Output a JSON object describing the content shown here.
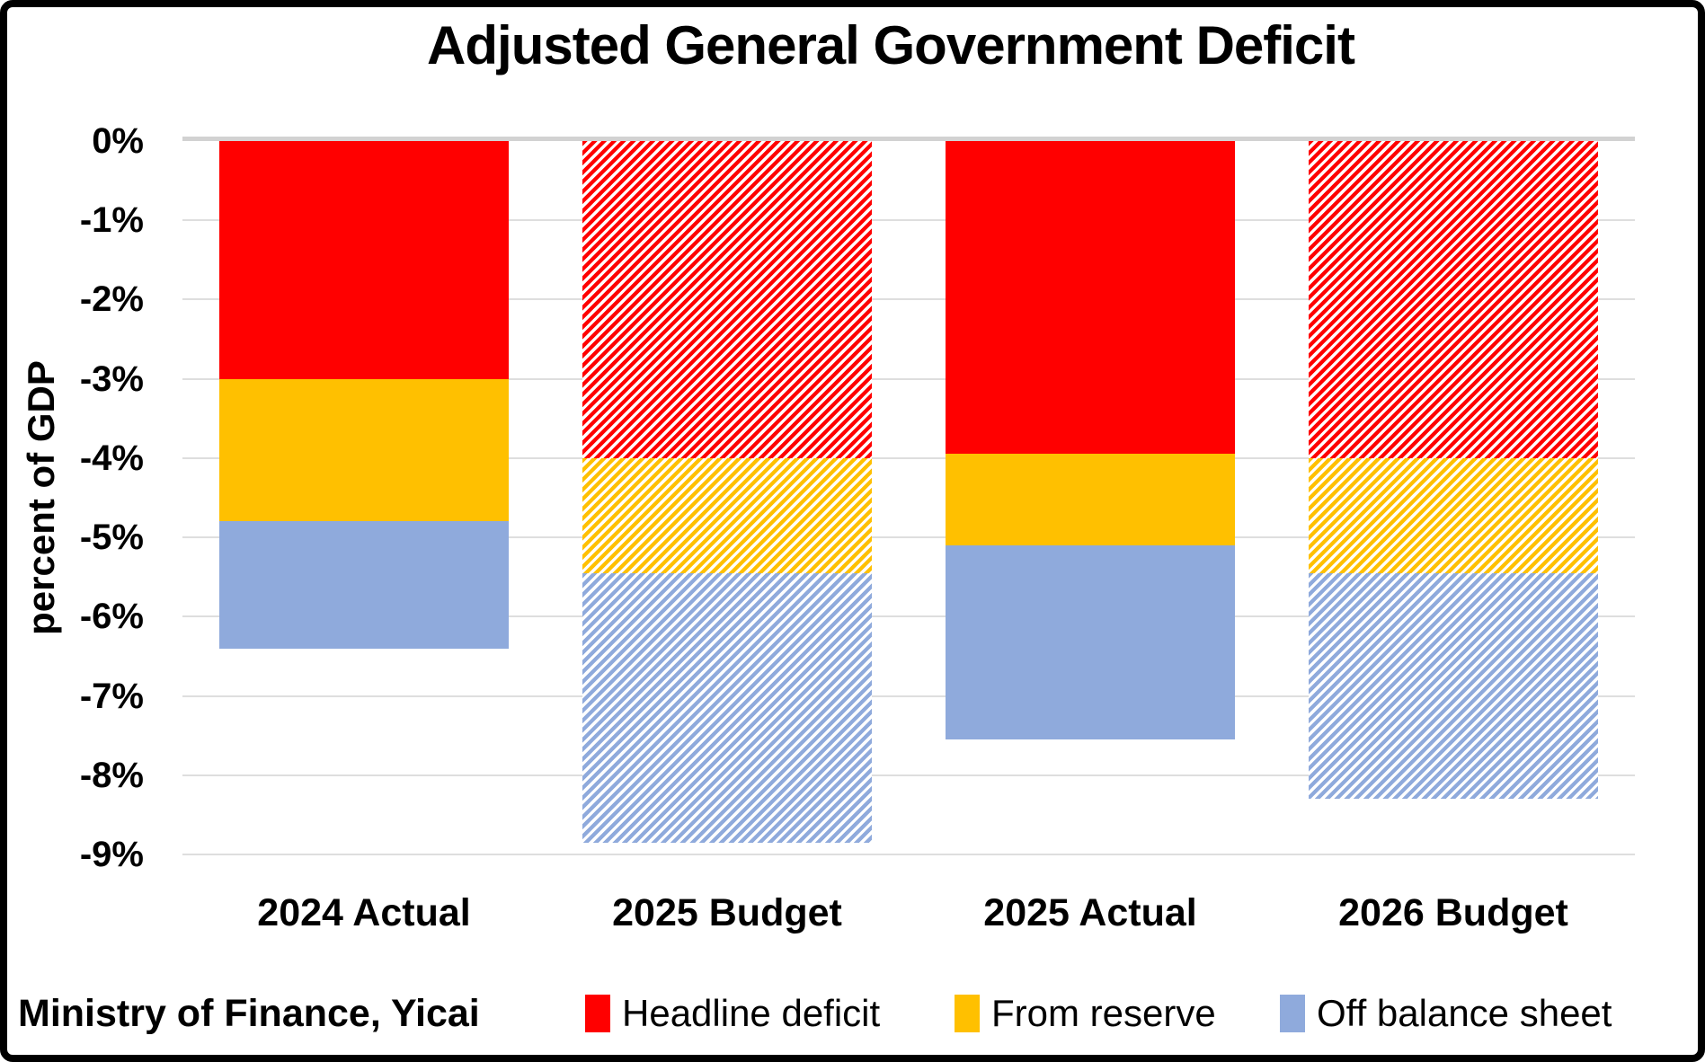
{
  "chart": {
    "title": "Adjusted General Government Deficit",
    "source": "Ministry of Finance, Yicai"
  },
  "y_axis": {
    "title": "percent of GDP",
    "tick_labels": [
      "0%",
      "-1%",
      "-2%",
      "-3%",
      "-4%",
      "-5%",
      "-6%",
      "-7%",
      "-8%",
      "-9%"
    ]
  },
  "chart_data": {
    "type": "bar",
    "stacked": true,
    "direction": "negative-down",
    "title": "Adjusted General Government Deficit",
    "ylabel": "percent of GDP",
    "ylim": [
      -9,
      0
    ],
    "grid": true,
    "legend_position": "bottom",
    "categories": [
      "2024 Actual",
      "2025 Budget",
      "2025 Actual",
      "2026 Budget"
    ],
    "bar_styles": [
      "solid",
      "hatched",
      "solid",
      "hatched"
    ],
    "series": [
      {
        "name": "Headline deficit",
        "color": "#FF0000",
        "values": [
          -3.0,
          -4.0,
          -3.95,
          -4.0
        ]
      },
      {
        "name": "From reserve",
        "color": "#FFC000",
        "values": [
          -1.8,
          -1.45,
          -1.15,
          -1.45
        ]
      },
      {
        "name": "Off balance sheet",
        "color": "#8FAADC",
        "values": [
          -1.6,
          -3.4,
          -2.45,
          -2.85
        ]
      }
    ],
    "stack_totals": [
      -6.4,
      -8.85,
      -7.55,
      -8.3
    ]
  },
  "legend": {
    "items": [
      {
        "label": "Headline deficit",
        "color": "#FF0000"
      },
      {
        "label": "From reserve",
        "color": "#FFC000"
      },
      {
        "label": "Off balance sheet",
        "color": "#8FAADC"
      }
    ]
  },
  "style": {
    "background": "#FFFFFF",
    "border_color": "#000000",
    "text_color": "#000000",
    "gridline_color": "#DEDEDE",
    "zero_line_color": "#D2D2D2"
  }
}
